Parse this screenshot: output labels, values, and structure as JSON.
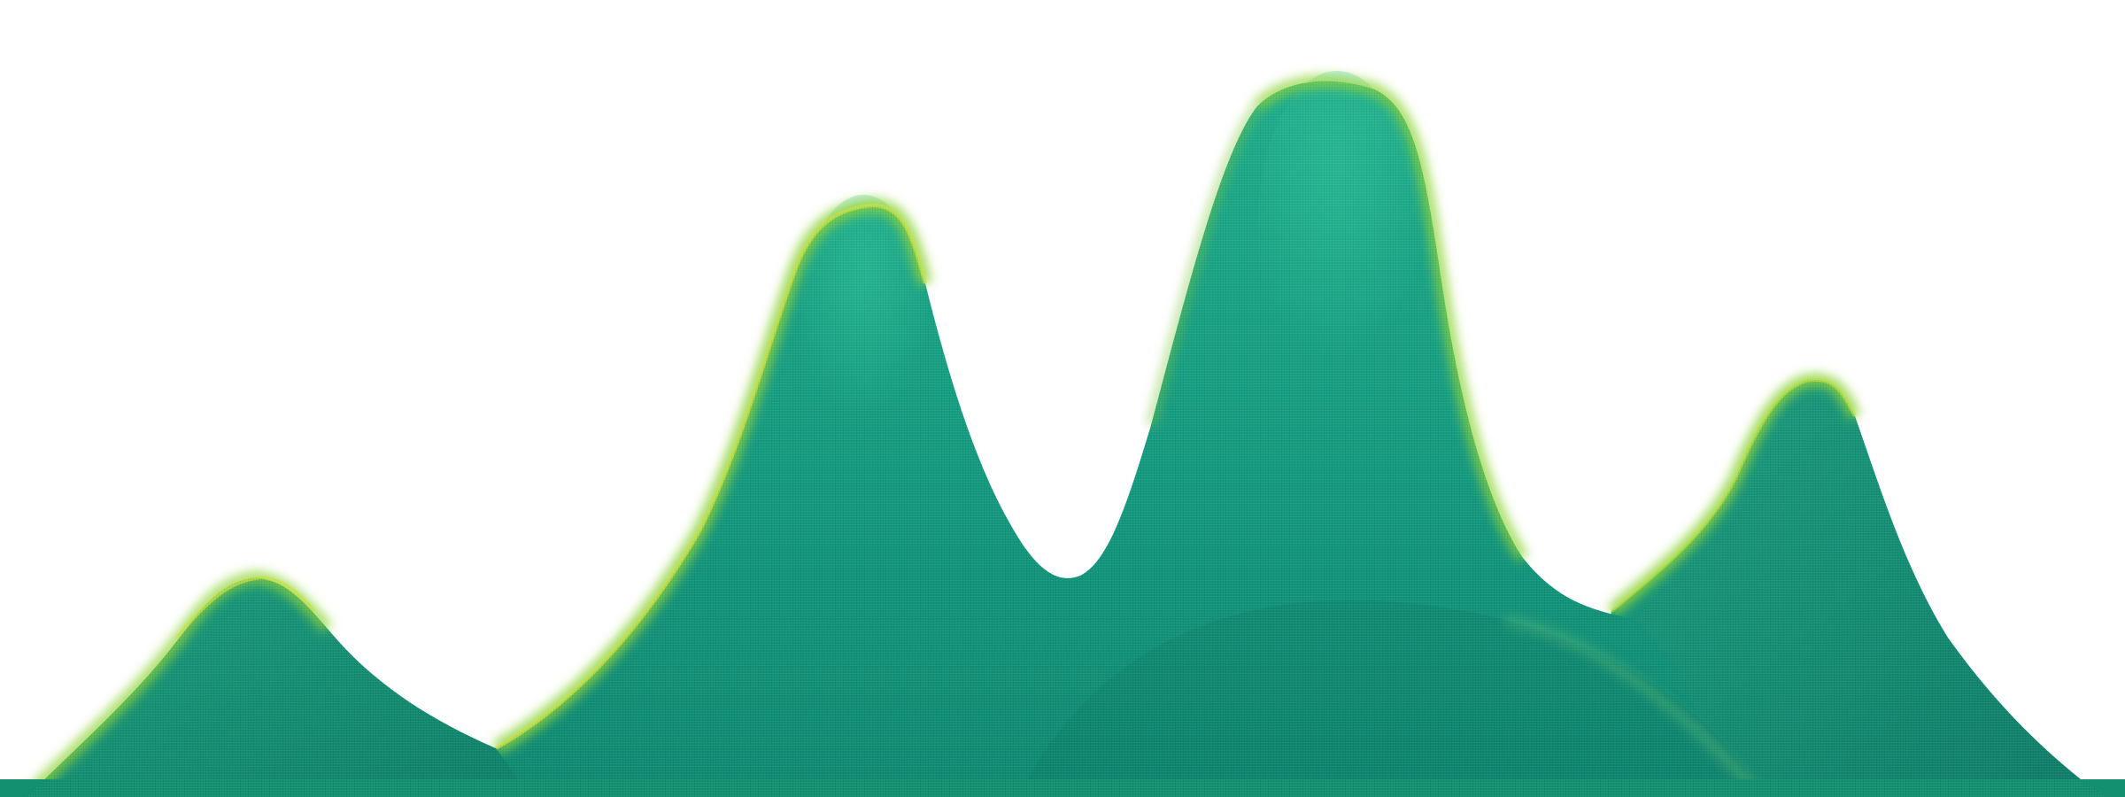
{
  "artwork": {
    "subject": "",
    "palette": {
      "background": "#ffffff",
      "teal_dark": "#0f7d6a",
      "teal_mid": "#149a7f",
      "teal_light": "#22b08c",
      "rim_green": "#8ed43a",
      "rim_yellow": "#c4e04a",
      "base_band": "#12906f"
    }
  }
}
